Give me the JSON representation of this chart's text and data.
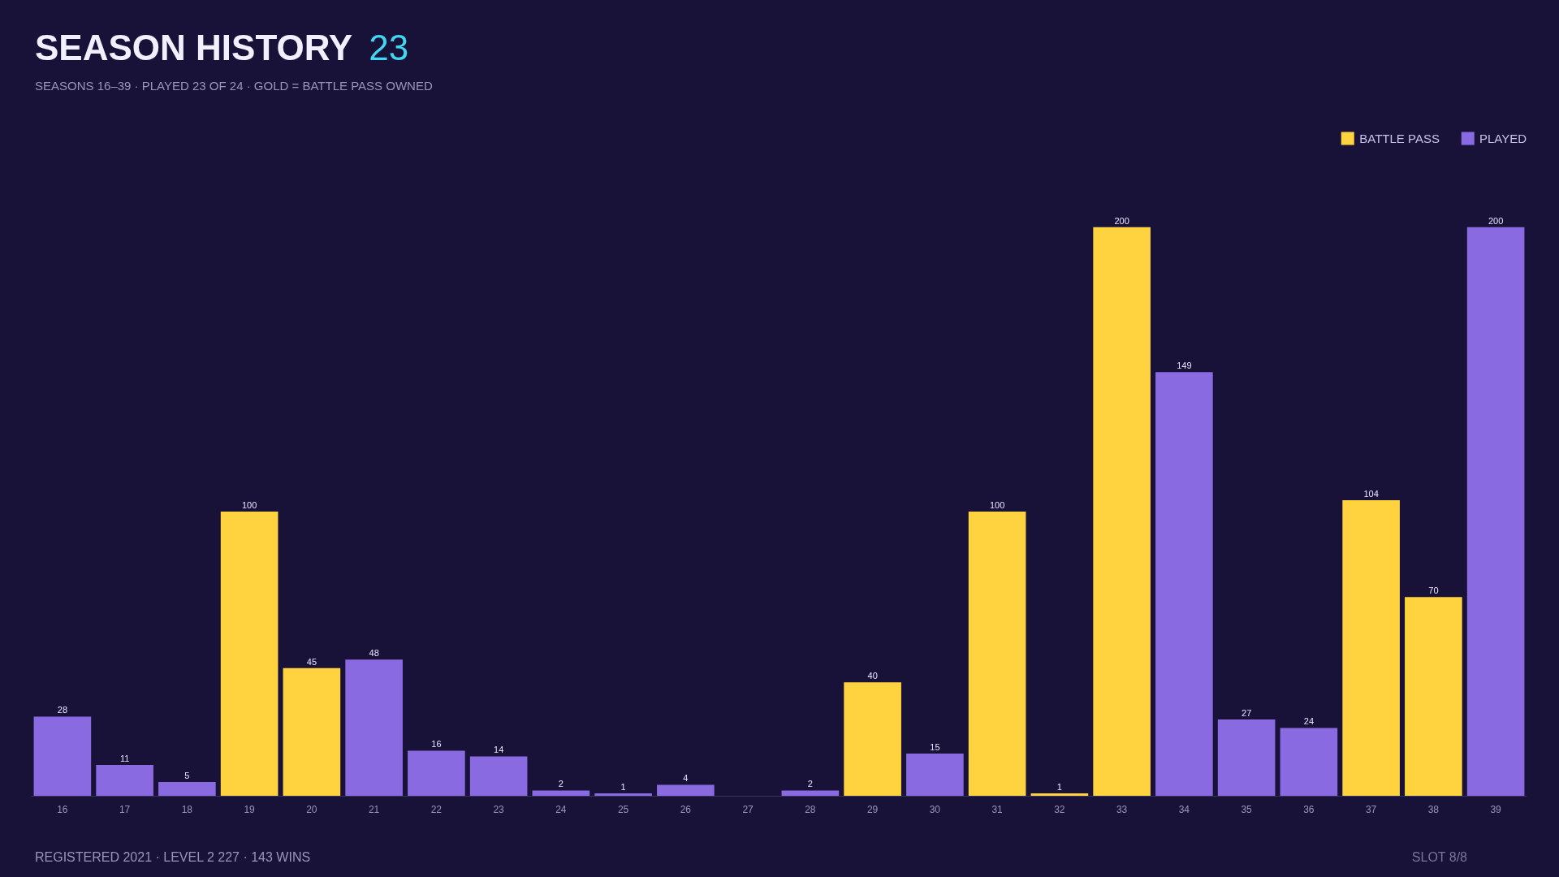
{
  "chart_data": {
    "type": "bar",
    "title": "SEASON HISTORY",
    "subtitle": "SEASONS 16–39 · PLAYED 23 OF 24 · GOLD = BATTLE PASS OWNED",
    "annotations": [
      "23",
      "REGISTERED 2021 · LEVEL 2 227 · 143 WINS",
      "SLOT 8/8"
    ],
    "categories": [
      "16",
      "17",
      "18",
      "19",
      "20",
      "21",
      "22",
      "23",
      "24",
      "25",
      "26",
      "27",
      "28",
      "29",
      "30",
      "31",
      "32",
      "33",
      "34",
      "35",
      "36",
      "37",
      "38",
      "39"
    ],
    "series": [
      {
        "name": "BATTLE PASS",
        "color": "#ffd23f",
        "values": [
          null,
          null,
          null,
          100,
          45,
          null,
          null,
          null,
          null,
          null,
          null,
          null,
          null,
          40,
          null,
          100,
          1,
          200,
          null,
          null,
          null,
          104,
          70,
          null
        ]
      },
      {
        "name": "PLAYED",
        "color": "#8a6ae0",
        "values": [
          28,
          11,
          5,
          null,
          null,
          48,
          16,
          14,
          2,
          1,
          4,
          null,
          2,
          null,
          15,
          null,
          null,
          null,
          149,
          27,
          24,
          null,
          null,
          200
        ]
      }
    ],
    "data_labels": true,
    "legend": "top right",
    "grid": false
  }
}
